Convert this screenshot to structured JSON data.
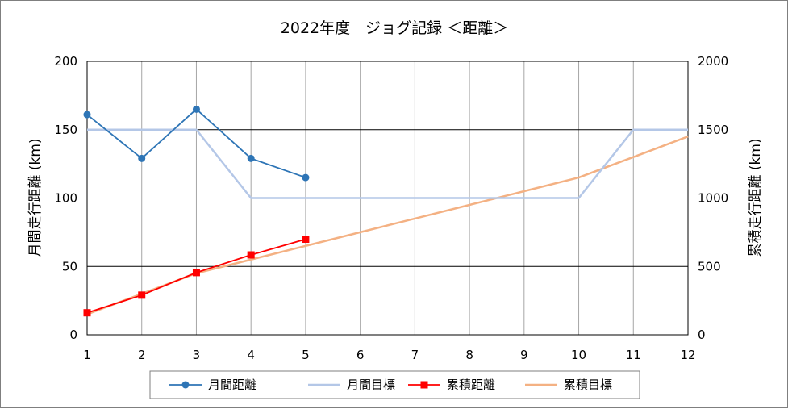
{
  "chart_data": {
    "type": "line",
    "title": "2022年度　ジョグ記録 ＜距離＞",
    "xlabel": "",
    "ylabel": "月間走行距離 (km)",
    "y2label": "累積走行距離 (km)",
    "categories": [
      "1",
      "2",
      "3",
      "4",
      "5",
      "6",
      "7",
      "8",
      "9",
      "10",
      "11",
      "12"
    ],
    "ylim": [
      0,
      200
    ],
    "y2lim": [
      0,
      2000
    ],
    "y_ticks": [
      "0",
      "50",
      "100",
      "150",
      "200"
    ],
    "y2_ticks": [
      "0",
      "500",
      "1000",
      "1500",
      "2000"
    ],
    "grid": true,
    "legend_position": "bottom",
    "series": [
      {
        "name": "月間距離",
        "axis": "left",
        "color": "#2e75b6",
        "marker": "circle",
        "values": [
          161,
          129,
          165,
          129,
          115,
          null,
          null,
          null,
          null,
          null,
          null,
          null
        ]
      },
      {
        "name": "月間目標",
        "axis": "left",
        "color": "#b4c7e7",
        "marker": "none",
        "values": [
          150,
          150,
          150,
          100,
          100,
          100,
          100,
          100,
          100,
          100,
          150,
          150
        ]
      },
      {
        "name": "累積距離",
        "axis": "right",
        "color": "#ff0000",
        "marker": "square",
        "values": [
          161,
          290,
          455,
          584,
          699,
          null,
          null,
          null,
          null,
          null,
          null,
          null
        ]
      },
      {
        "name": "累積目標",
        "axis": "right",
        "color": "#f4b183",
        "marker": "none",
        "values": [
          150,
          300,
          450,
          550,
          650,
          750,
          850,
          950,
          1050,
          1150,
          1300,
          1450
        ]
      }
    ]
  }
}
